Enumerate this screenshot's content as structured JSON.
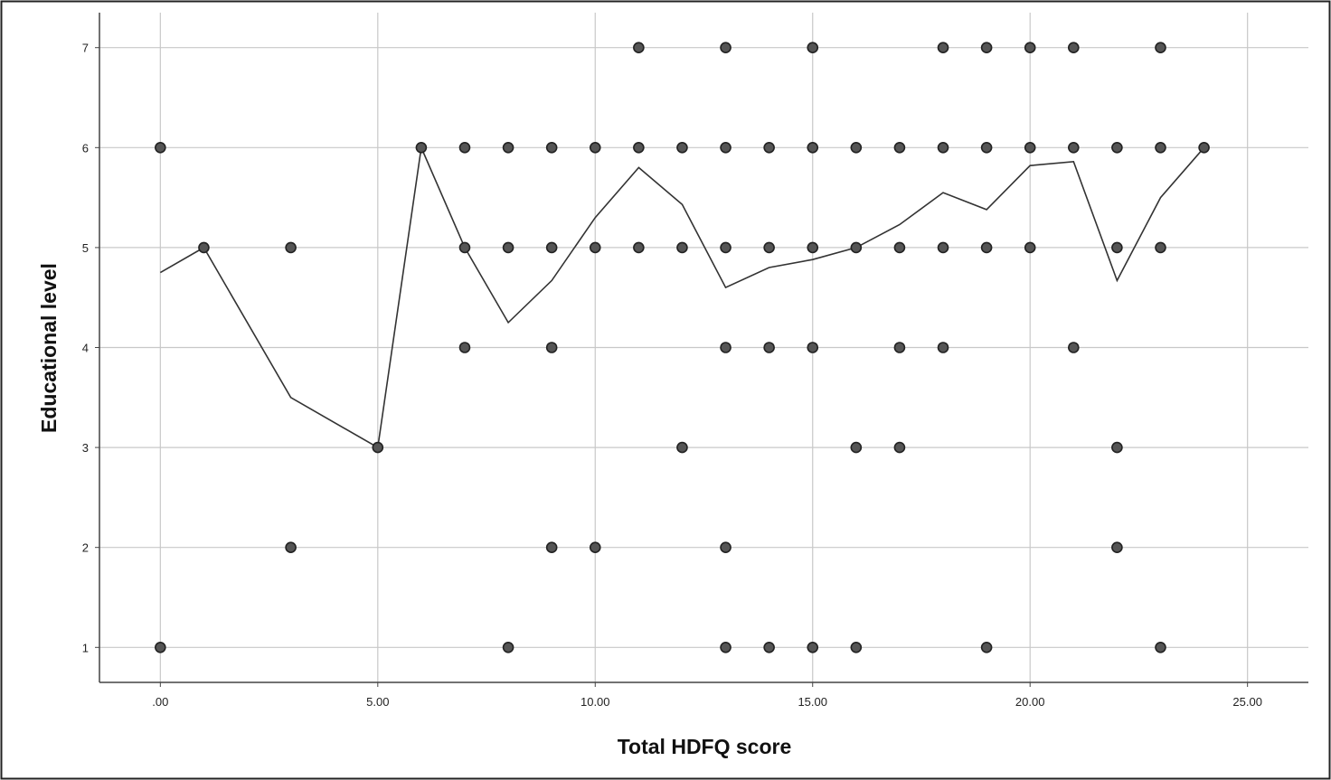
{
  "chart_data": {
    "type": "scatter",
    "title": "",
    "xlabel": "Total HDFQ score",
    "ylabel": "Educational level",
    "xlim": [
      -1.4,
      26.4
    ],
    "ylim": [
      0.65,
      7.35
    ],
    "x_ticks": [
      0,
      5,
      10,
      15,
      20,
      25
    ],
    "x_tick_labels": [
      ".00",
      "5.00",
      "10.00",
      "15.00",
      "20.00",
      "25.00"
    ],
    "y_ticks": [
      1,
      2,
      3,
      4,
      5,
      6,
      7
    ],
    "y_tick_labels": [
      "1",
      "2",
      "3",
      "4",
      "5",
      "6",
      "7"
    ],
    "grid": true,
    "legend": "none",
    "colors": {
      "point_fill": "#555555",
      "point_edge": "#222222",
      "line": "#333333",
      "grid": "#c8c8c8",
      "axis": "#444444"
    },
    "points": [
      {
        "x": 0,
        "y": 6
      },
      {
        "x": 0,
        "y": 1
      },
      {
        "x": 1,
        "y": 5
      },
      {
        "x": 3,
        "y": 5
      },
      {
        "x": 3,
        "y": 2
      },
      {
        "x": 5,
        "y": 3
      },
      {
        "x": 6,
        "y": 6
      },
      {
        "x": 7,
        "y": 6
      },
      {
        "x": 7,
        "y": 5
      },
      {
        "x": 7,
        "y": 4
      },
      {
        "x": 8,
        "y": 6
      },
      {
        "x": 8,
        "y": 5
      },
      {
        "x": 8,
        "y": 1
      },
      {
        "x": 9,
        "y": 6
      },
      {
        "x": 9,
        "y": 5
      },
      {
        "x": 9,
        "y": 4
      },
      {
        "x": 9,
        "y": 2
      },
      {
        "x": 10,
        "y": 6
      },
      {
        "x": 10,
        "y": 5
      },
      {
        "x": 10,
        "y": 2
      },
      {
        "x": 11,
        "y": 7
      },
      {
        "x": 11,
        "y": 6
      },
      {
        "x": 11,
        "y": 5
      },
      {
        "x": 12,
        "y": 6
      },
      {
        "x": 12,
        "y": 5
      },
      {
        "x": 12,
        "y": 3
      },
      {
        "x": 13,
        "y": 7
      },
      {
        "x": 13,
        "y": 6
      },
      {
        "x": 13,
        "y": 5
      },
      {
        "x": 13,
        "y": 4
      },
      {
        "x": 13,
        "y": 2
      },
      {
        "x": 13,
        "y": 1
      },
      {
        "x": 14,
        "y": 6
      },
      {
        "x": 14,
        "y": 5
      },
      {
        "x": 14,
        "y": 4
      },
      {
        "x": 14,
        "y": 1
      },
      {
        "x": 15,
        "y": 7
      },
      {
        "x": 15,
        "y": 6
      },
      {
        "x": 15,
        "y": 5
      },
      {
        "x": 15,
        "y": 4
      },
      {
        "x": 15,
        "y": 1
      },
      {
        "x": 16,
        "y": 6
      },
      {
        "x": 16,
        "y": 5
      },
      {
        "x": 16,
        "y": 3
      },
      {
        "x": 16,
        "y": 1
      },
      {
        "x": 17,
        "y": 6
      },
      {
        "x": 17,
        "y": 5
      },
      {
        "x": 17,
        "y": 4
      },
      {
        "x": 17,
        "y": 3
      },
      {
        "x": 18,
        "y": 7
      },
      {
        "x": 18,
        "y": 6
      },
      {
        "x": 18,
        "y": 5
      },
      {
        "x": 18,
        "y": 4
      },
      {
        "x": 19,
        "y": 7
      },
      {
        "x": 19,
        "y": 6
      },
      {
        "x": 19,
        "y": 5
      },
      {
        "x": 19,
        "y": 1
      },
      {
        "x": 20,
        "y": 7
      },
      {
        "x": 20,
        "y": 6
      },
      {
        "x": 20,
        "y": 5
      },
      {
        "x": 21,
        "y": 7
      },
      {
        "x": 21,
        "y": 6
      },
      {
        "x": 21,
        "y": 4
      },
      {
        "x": 22,
        "y": 6
      },
      {
        "x": 22,
        "y": 5
      },
      {
        "x": 22,
        "y": 3
      },
      {
        "x": 22,
        "y": 2
      },
      {
        "x": 23,
        "y": 7
      },
      {
        "x": 23,
        "y": 6
      },
      {
        "x": 23,
        "y": 5
      },
      {
        "x": 23,
        "y": 1
      },
      {
        "x": 24,
        "y": 6
      }
    ],
    "mean_line": [
      {
        "x": 0,
        "y": 4.75
      },
      {
        "x": 1,
        "y": 5.0
      },
      {
        "x": 3,
        "y": 3.5
      },
      {
        "x": 5,
        "y": 3.0
      },
      {
        "x": 6,
        "y": 6.0
      },
      {
        "x": 7,
        "y": 5.0
      },
      {
        "x": 8,
        "y": 4.25
      },
      {
        "x": 9,
        "y": 4.67
      },
      {
        "x": 10,
        "y": 5.3
      },
      {
        "x": 11,
        "y": 5.8
      },
      {
        "x": 12,
        "y": 5.43
      },
      {
        "x": 13,
        "y": 4.6
      },
      {
        "x": 14,
        "y": 4.8
      },
      {
        "x": 15,
        "y": 4.88
      },
      {
        "x": 16,
        "y": 5.0
      },
      {
        "x": 17,
        "y": 5.23
      },
      {
        "x": 18,
        "y": 5.55
      },
      {
        "x": 19,
        "y": 5.38
      },
      {
        "x": 20,
        "y": 5.82
      },
      {
        "x": 21,
        "y": 5.86
      },
      {
        "x": 22,
        "y": 4.67
      },
      {
        "x": 23,
        "y": 5.5
      },
      {
        "x": 24,
        "y": 6.0
      }
    ]
  }
}
